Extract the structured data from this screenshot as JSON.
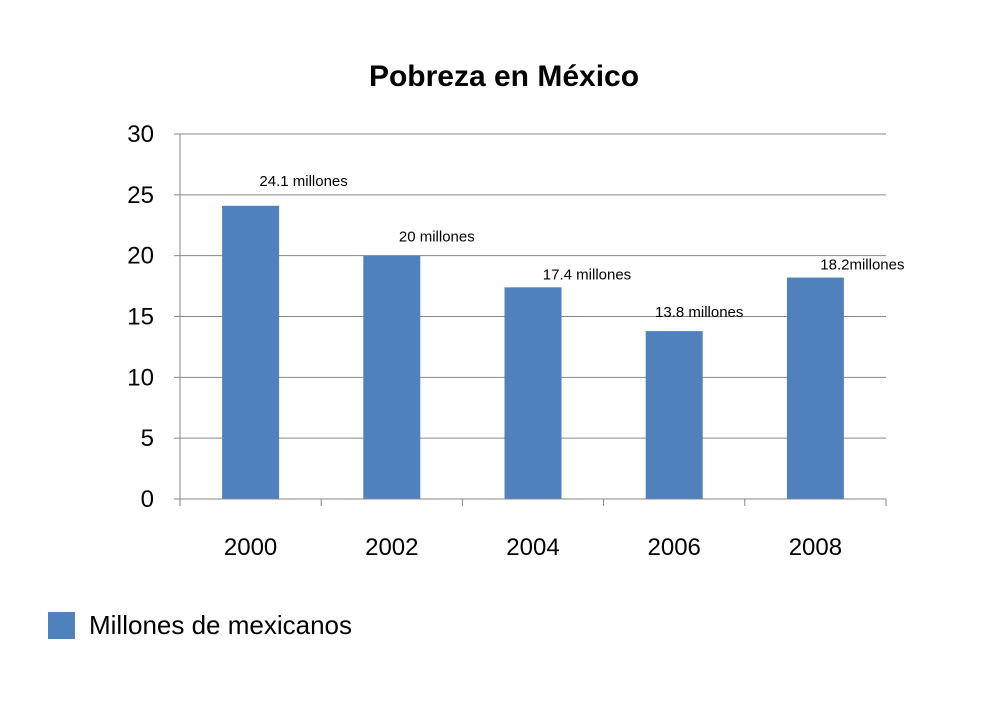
{
  "chart_data": {
    "type": "bar",
    "title": "Pobreza en México",
    "categories": [
      "2000",
      "2002",
      "2004",
      "2006",
      "2008"
    ],
    "series": [
      {
        "name": "Millones de mexicanos",
        "values": [
          24.1,
          20,
          17.4,
          13.8,
          18.2
        ],
        "data_labels": [
          "24.1 millones",
          "20 millones",
          "17.4 millones",
          "13.8 millones",
          "18.2millones"
        ]
      }
    ],
    "ylim": [
      0,
      30
    ],
    "yticks": [
      "0",
      "5",
      "10",
      "15",
      "20",
      "25",
      "30"
    ],
    "grid": true,
    "legend_position": "bottom-left",
    "bar_color": "#4F81BD"
  }
}
